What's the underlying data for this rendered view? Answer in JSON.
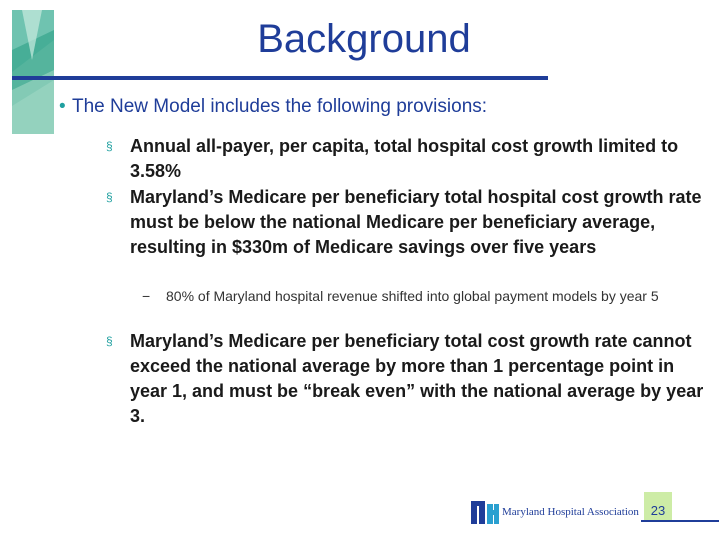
{
  "slide": {
    "title": "Background",
    "bullet_marker": "•",
    "sub_marker": "§",
    "dash_marker": "−",
    "intro": "The New Model includes the following provisions:",
    "items": [
      "Annual all-payer, per capita, total hospital cost growth limited to 3.58%",
      "Maryland’s Medicare per beneficiary total hospital cost growth rate must be below the national Medicare per beneficiary average, resulting in $330m of Medicare savings over five years",
      "Maryland’s Medicare per beneficiary total cost growth rate cannot exceed the national average by more than 1 percentage point in year 1, and must be “break even” with the national average by year 3."
    ],
    "subitem": "80% of Maryland hospital revenue shifted into global payment models by year 5"
  },
  "footer": {
    "org_name": "Maryland Hospital Association",
    "page_number": "23"
  },
  "colors": {
    "title": "#1f3d99",
    "accent_teal": "#20a0a0",
    "page_box": "#cdeca6"
  }
}
